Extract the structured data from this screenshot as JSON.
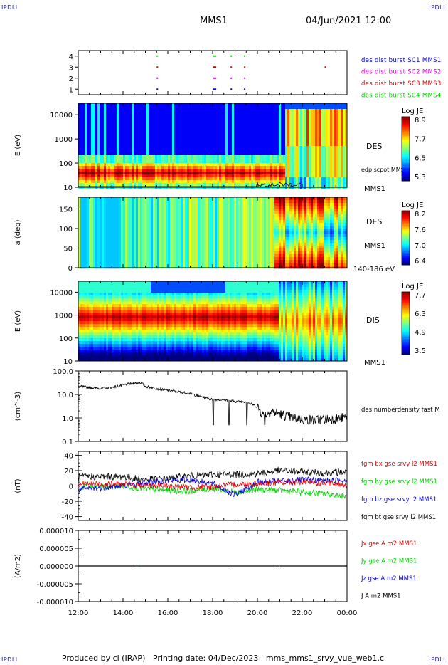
{
  "header": {
    "corner_tl": "IPDLI",
    "corner_tr": "IPDLI",
    "corner_bl": "IPDLI",
    "corner_br": "IPDLI",
    "mission": "MMS1",
    "datetime": "04/Jun/2021 12:00"
  },
  "footer": {
    "produced_by": "Produced by cl (IRAP)",
    "printing_date": "Printing date: 04/Dec/2023",
    "file": "mms_mms1_srvy_vue_web1.cl"
  },
  "colors": {
    "black": "#000000",
    "red": "#e00000",
    "green": "#00d000",
    "blue": "#0000e0",
    "magenta": "#e000e0"
  },
  "chart_data": [
    {
      "type": "scatter",
      "id": "burst",
      "ylabel": "",
      "yticks": [
        "1",
        "2",
        "3",
        "4"
      ],
      "ylim": [
        0.5,
        4.5
      ],
      "legend": [
        {
          "name": "des dist burst SC1 MMS1",
          "color": "#0000e0"
        },
        {
          "name": "des dist burst SC2 MMS2",
          "color": "#e000e0"
        },
        {
          "name": "des dist burst SC3 MMS3",
          "color": "#e00000"
        },
        {
          "name": "des dist burst SC4 MMS4",
          "color": "#00d000"
        }
      ],
      "bursts_hours": [
        15.5,
        18.0,
        18.1,
        18.8,
        19.4,
        23.0
      ]
    },
    {
      "type": "heatmap",
      "id": "des-energy",
      "ylabel": "E (eV)",
      "yscale": "log",
      "ylim": [
        10,
        30000
      ],
      "yticks": [
        "10",
        "100",
        "1000",
        "10000"
      ],
      "label": "DES",
      "sublabel": "MMS1",
      "overlay": "edp scpot MMS1",
      "colorbar": {
        "title": "Log JE",
        "ticks": [
          "8.9",
          "7.7",
          "6.5",
          "5.3"
        ],
        "range": [
          5.3,
          8.9
        ]
      }
    },
    {
      "type": "heatmap",
      "id": "des-pitch",
      "ylabel": "a (deg)",
      "ylim": [
        0,
        180
      ],
      "yticks": [
        "0",
        "50",
        "100",
        "150"
      ],
      "label": "DES",
      "sublabel": "MMS1",
      "energy_range": "140-186 eV",
      "colorbar": {
        "title": "Log JE",
        "ticks": [
          "8.2",
          "7.6",
          "7.0",
          "6.4"
        ],
        "range": [
          6.4,
          8.2
        ]
      }
    },
    {
      "type": "heatmap",
      "id": "dis-energy",
      "ylabel": "E (eV)",
      "yscale": "log",
      "ylim": [
        10,
        30000
      ],
      "yticks": [
        "10",
        "100",
        "1000",
        "10000"
      ],
      "label": "DIS",
      "sublabel": "MMS1",
      "colorbar": {
        "title": "Log JE",
        "ticks": [
          "7.7",
          "6.3",
          "4.9",
          "3.5"
        ],
        "range": [
          3.5,
          7.7
        ]
      }
    },
    {
      "type": "line",
      "id": "density",
      "ylabel": "(cm^-3)",
      "yscale": "log",
      "ylim": [
        0.1,
        100
      ],
      "yticks": [
        "0.1",
        "1.0",
        "10.0",
        "100.0"
      ],
      "series": [
        {
          "name": "des numberdensity fast M",
          "color": "#000000",
          "x": [
            12.0,
            12.5,
            13.0,
            13.5,
            14.0,
            14.5,
            14.8,
            15.0,
            15.5,
            16.0,
            16.5,
            17.0,
            17.5,
            18.0,
            18.5,
            19.0,
            19.5,
            20.0,
            20.3,
            20.6,
            21.0,
            21.3,
            21.6,
            22.0,
            22.5,
            23.0,
            23.5,
            24.0
          ],
          "y": [
            22,
            20,
            18,
            20,
            25,
            30,
            32,
            22,
            18,
            15,
            13,
            11,
            8,
            6,
            6,
            5,
            5,
            3,
            1.2,
            2,
            1.5,
            1.2,
            1.0,
            0.9,
            0.8,
            0.9,
            0.9,
            1.1
          ]
        }
      ]
    },
    {
      "type": "line",
      "id": "magnetic-field",
      "ylabel": "(nT)",
      "ylim": [
        -45,
        45
      ],
      "yticks": [
        "-40",
        "-20",
        "0",
        "20",
        "40"
      ],
      "series": [
        {
          "name": "fgm bx gse srvy l2 MMS1",
          "color": "#e00000",
          "x": [
            12,
            14,
            15,
            16,
            17,
            18,
            19,
            20,
            21,
            22,
            23,
            24
          ],
          "y": [
            3,
            2,
            1,
            0,
            -2,
            -1,
            2,
            3,
            4,
            5,
            3,
            2
          ]
        },
        {
          "name": "fgm by gse srvy l2 MMS1",
          "color": "#00d000",
          "x": [
            12,
            14,
            15,
            16,
            17,
            18,
            19,
            20,
            21,
            22,
            23,
            24
          ],
          "y": [
            -2,
            0,
            -4,
            -6,
            -7,
            -3,
            -8,
            -5,
            -6,
            -8,
            -10,
            -14
          ]
        },
        {
          "name": "fgm bz gse srvy l2 MMS1",
          "color": "#0000e0",
          "x": [
            12,
            14,
            15,
            16,
            17,
            18,
            19,
            20,
            21,
            22,
            23,
            24
          ],
          "y": [
            -5,
            0,
            4,
            7,
            8,
            3,
            -12,
            5,
            6,
            8,
            7,
            8
          ]
        },
        {
          "name": "fgm bt gse srvy l2 MMS1",
          "color": "#000000",
          "x": [
            12,
            14,
            15,
            16,
            17,
            18,
            19,
            20,
            21,
            22,
            23,
            24
          ],
          "y": [
            12,
            12,
            8,
            10,
            13,
            15,
            15,
            16,
            20,
            18,
            17,
            18
          ]
        }
      ]
    },
    {
      "type": "line",
      "id": "current-density",
      "ylabel": "(A/m2)",
      "ylim": [
        -1e-05,
        1e-05
      ],
      "yticks": [
        "-0.000010",
        "-0.000005",
        "0.000000",
        "0.000005",
        "0.000010"
      ],
      "series": [
        {
          "name": "Jx gse A m2 MMS1",
          "color": "#e00000",
          "x": [
            12,
            24
          ],
          "y": [
            0,
            0
          ]
        },
        {
          "name": "Jy gse A m2 MMS1",
          "color": "#00d000",
          "x": [
            12,
            24
          ],
          "y": [
            0,
            0
          ]
        },
        {
          "name": "Jz gse A m2 MMS1",
          "color": "#0000e0",
          "x": [
            12,
            24
          ],
          "y": [
            0,
            0
          ]
        },
        {
          "name": "J A m2 MMS1",
          "color": "#000000",
          "x": [
            12,
            24
          ],
          "y": [
            0,
            0
          ]
        }
      ],
      "xticks": [
        "12:00",
        "14:00",
        "16:00",
        "18:00",
        "20:00",
        "22:00",
        "00:00"
      ],
      "xlim": [
        12,
        24
      ]
    }
  ]
}
